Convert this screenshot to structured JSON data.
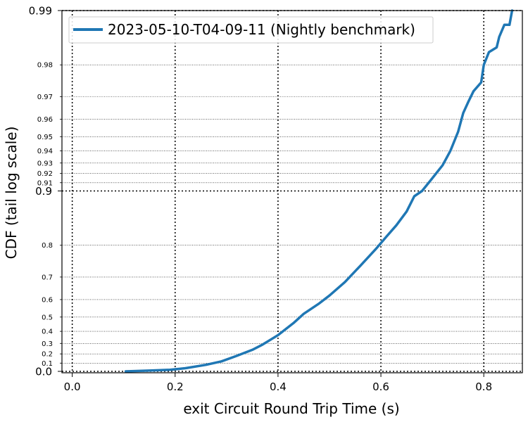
{
  "chart_data": {
    "type": "line",
    "xlabel": "exit Circuit Round Trip Time (s)",
    "ylabel": "CDF (tail log scale)",
    "xlim": [
      -0.02,
      0.875
    ],
    "x_ticks": [
      {
        "value": 0.0,
        "label": "0.0"
      },
      {
        "value": 0.2,
        "label": "0.2"
      },
      {
        "value": 0.4,
        "label": "0.4"
      },
      {
        "value": 0.6,
        "label": "0.6"
      },
      {
        "value": 0.8,
        "label": "0.8"
      }
    ],
    "y_scale": "tail-log (transform -log10(1-p))",
    "ylim": [
      -0.018,
      0.99
    ],
    "y_major_ticks": [
      {
        "value": 0.0,
        "label": "0.0"
      },
      {
        "value": 0.9,
        "label": "0.9"
      },
      {
        "value": 0.99,
        "label": "0.99"
      }
    ],
    "y_minor_ticks": [
      {
        "value": 0.1,
        "label": "0.1"
      },
      {
        "value": 0.2,
        "label": "0.2"
      },
      {
        "value": 0.3,
        "label": "0.3"
      },
      {
        "value": 0.4,
        "label": "0.4"
      },
      {
        "value": 0.5,
        "label": "0.5"
      },
      {
        "value": 0.6,
        "label": "0.6"
      },
      {
        "value": 0.7,
        "label": "0.7"
      },
      {
        "value": 0.8,
        "label": "0.8"
      },
      {
        "value": 0.91,
        "label": "0.91"
      },
      {
        "value": 0.92,
        "label": "0.92"
      },
      {
        "value": 0.93,
        "label": "0.93"
      },
      {
        "value": 0.94,
        "label": "0.94"
      },
      {
        "value": 0.95,
        "label": "0.95"
      },
      {
        "value": 0.96,
        "label": "0.96"
      },
      {
        "value": 0.97,
        "label": "0.97"
      },
      {
        "value": 0.98,
        "label": "0.98"
      }
    ],
    "grid": true,
    "legend_position": "top-left",
    "series": [
      {
        "name": "2023-05-10-T04-09-11 (Nightly benchmark)",
        "color": "#1f77b4",
        "points": [
          [
            0.104,
            0.0
          ],
          [
            0.15,
            0.01
          ],
          [
            0.19,
            0.02
          ],
          [
            0.22,
            0.04
          ],
          [
            0.26,
            0.08
          ],
          [
            0.29,
            0.12
          ],
          [
            0.32,
            0.18
          ],
          [
            0.35,
            0.24
          ],
          [
            0.37,
            0.29
          ],
          [
            0.4,
            0.37
          ],
          [
            0.43,
            0.46
          ],
          [
            0.45,
            0.52
          ],
          [
            0.48,
            0.58
          ],
          [
            0.5,
            0.62
          ],
          [
            0.53,
            0.68
          ],
          [
            0.56,
            0.74
          ],
          [
            0.59,
            0.79
          ],
          [
            0.61,
            0.82
          ],
          [
            0.63,
            0.845
          ],
          [
            0.65,
            0.87
          ],
          [
            0.665,
            0.893
          ],
          [
            0.68,
            0.9
          ],
          [
            0.7,
            0.915
          ],
          [
            0.72,
            0.928
          ],
          [
            0.735,
            0.94
          ],
          [
            0.75,
            0.953
          ],
          [
            0.76,
            0.963
          ],
          [
            0.77,
            0.968
          ],
          [
            0.78,
            0.972
          ],
          [
            0.795,
            0.975
          ],
          [
            0.8,
            0.98
          ],
          [
            0.81,
            0.983
          ],
          [
            0.825,
            0.984
          ],
          [
            0.83,
            0.986
          ],
          [
            0.84,
            0.988
          ],
          [
            0.85,
            0.988
          ],
          [
            0.855,
            0.99
          ]
        ]
      }
    ]
  }
}
